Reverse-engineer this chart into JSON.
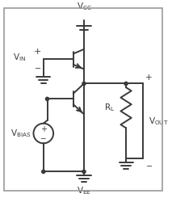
{
  "bg_color": "#ffffff",
  "border_color": "#999999",
  "line_color": "#3a3a3a",
  "line_width": 1.4,
  "fig_width": 2.13,
  "fig_height": 2.45,
  "dpi": 100,
  "vcc_label": "V",
  "vcc_sub": "CC",
  "vee_label": "V",
  "vee_sub": "EE",
  "vin_label": "V",
  "vin_sub": "IN",
  "vbias_label": "V",
  "vbias_sub": "BIAS",
  "rl_label": "R",
  "rl_sub": "L",
  "vout_label": "V",
  "vout_sub": "OUT"
}
